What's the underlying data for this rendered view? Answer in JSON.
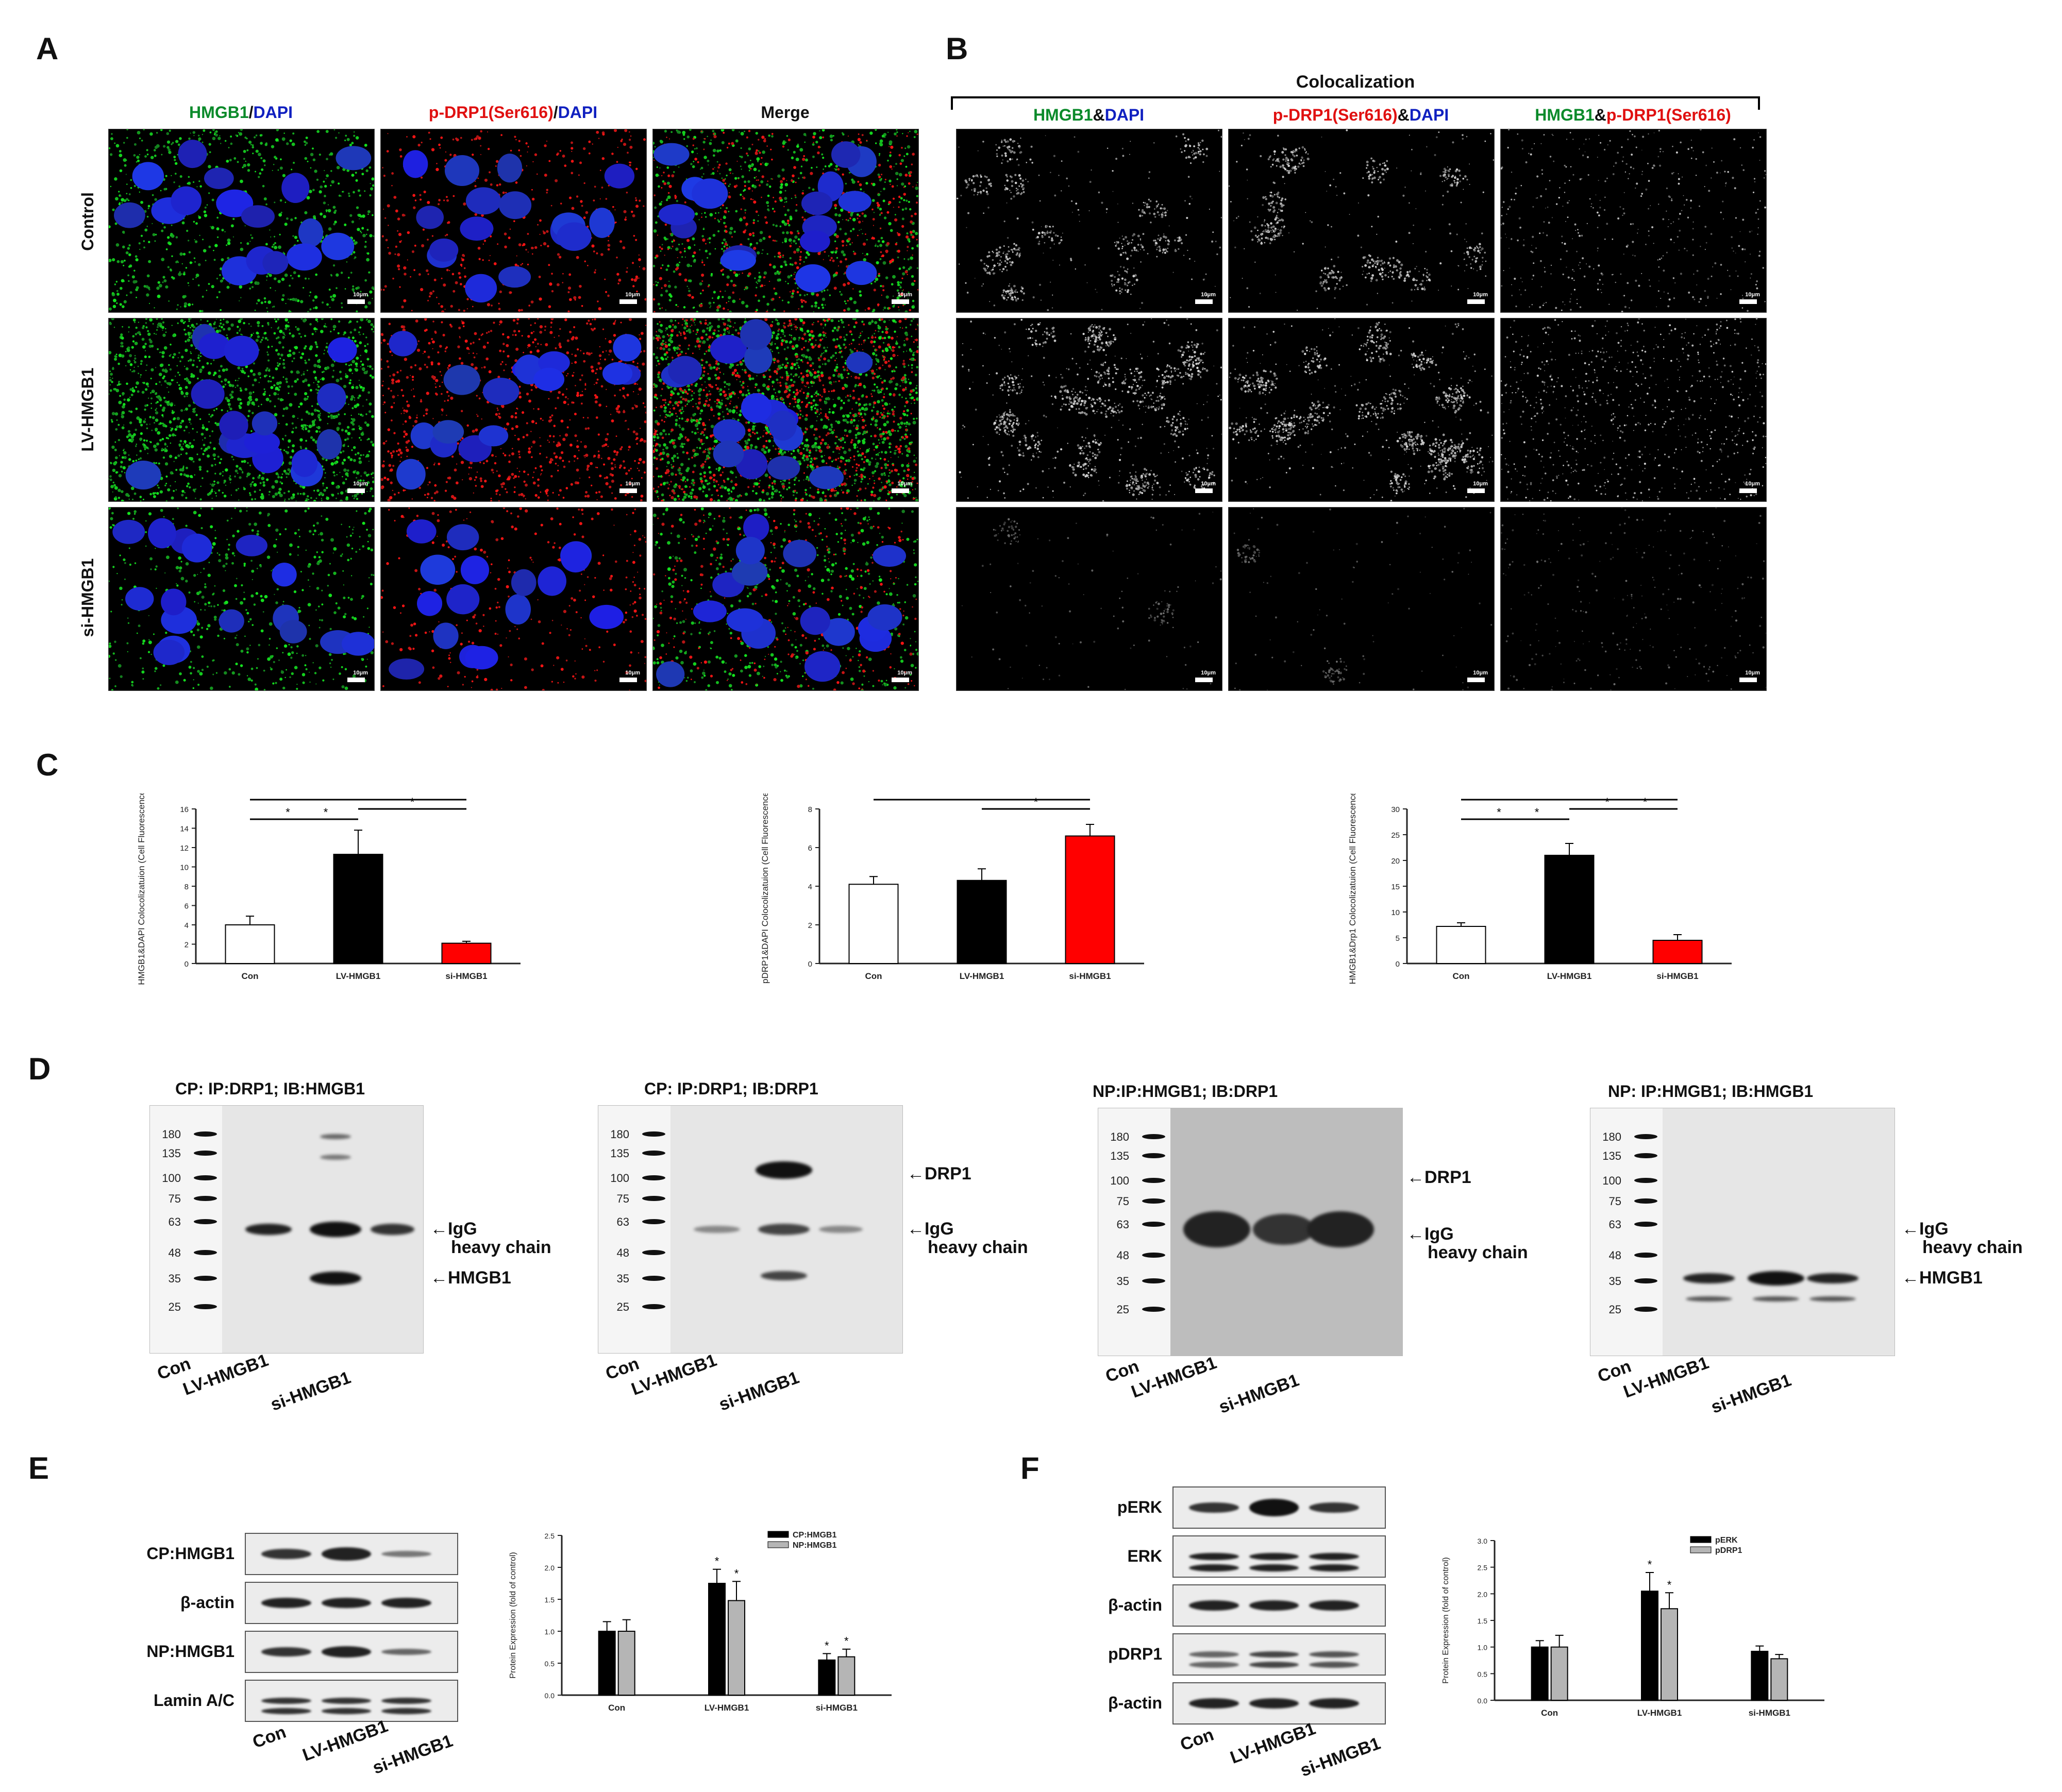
{
  "panels": {
    "a": "A",
    "b": "B",
    "c": "C",
    "d": "D",
    "e": "E",
    "f": "F"
  },
  "panel_a": {
    "col1": {
      "g": "HMGB1",
      "sep": "/",
      "b": "DAPI"
    },
    "col2": {
      "r": "p-DRP1(Ser616)",
      "sep": "/",
      "b": "DAPI"
    },
    "col3": "Merge",
    "rows": [
      "Control",
      "LV-HMGB1",
      "si-HMGB1"
    ],
    "scale": "10μm"
  },
  "panel_b": {
    "title": "Colocalization",
    "col1": {
      "g": "HMGB1",
      "sep": "&",
      "b": "DAPI"
    },
    "col2": {
      "r": "p-DRP1(Ser616)",
      "sep": "&",
      "b": "DAPI"
    },
    "col3": {
      "g": "HMGB1",
      "sep": "&",
      "r": "p-DRP1(Ser616)"
    },
    "scale": "10μm"
  },
  "colors": {
    "green": "#0a8a2a",
    "red": "#e01010",
    "blue": "#1020c0",
    "black_bar": "#000000",
    "red_bar": "#ff0000",
    "gray_bar": "#b5b5b5"
  },
  "chart_data": [
    {
      "type": "bar",
      "categories": [
        "Con",
        "LV-HMGB1",
        "si-HMGB1"
      ],
      "values": [
        4.0,
        11.3,
        2.1
      ],
      "errors": [
        0.9,
        2.5,
        0.2
      ],
      "ylabel": "HMGB1&DAPI Colocolizatuion (Cell Fluorescence)",
      "ylim": [
        0,
        16
      ],
      "yticks": [
        0,
        2,
        4,
        6,
        8,
        10,
        12,
        14,
        16
      ],
      "sig": "*"
    },
    {
      "type": "bar",
      "categories": [
        "Con",
        "LV-HMGB1",
        "si-HMGB1"
      ],
      "values": [
        4.1,
        4.3,
        6.6
      ],
      "errors": [
        0.4,
        0.6,
        0.6
      ],
      "ylabel": "pDRP1&DAPI Colocolizatuion (Cell Fluorescence)",
      "ylim": [
        0,
        8
      ],
      "yticks": [
        0,
        2,
        4,
        6,
        8
      ],
      "sig": "*"
    },
    {
      "type": "bar",
      "categories": [
        "Con",
        "LV-HMGB1",
        "si-HMGB1"
      ],
      "values": [
        7.2,
        21.0,
        4.5
      ],
      "errors": [
        0.7,
        2.3,
        1.1
      ],
      "ylabel": "HMGB1&Drp1 Colocolizatuion (Cell Fluorescence)",
      "ylim": [
        0,
        30
      ],
      "yticks": [
        0,
        5,
        10,
        15,
        20,
        25,
        30
      ],
      "sig": "*"
    },
    {
      "type": "bar",
      "categories": [
        "Con",
        "LV-HMGB1",
        "si-HMGB1"
      ],
      "series": [
        {
          "name": "CP:HMGB1",
          "values": [
            1.0,
            1.75,
            0.55
          ],
          "errors": [
            0.15,
            0.22,
            0.1
          ]
        },
        {
          "name": "NP:HMGB1",
          "values": [
            1.0,
            1.48,
            0.6
          ],
          "errors": [
            0.18,
            0.3,
            0.12
          ]
        }
      ],
      "ylabel": "Protein Expression (fold of control)",
      "ylim": [
        0,
        2.5
      ],
      "yticks": [
        "0.0",
        "0.5",
        "1.0",
        "1.5",
        "2.0",
        "2.5"
      ],
      "legend": "top-right",
      "sig": "*"
    },
    {
      "type": "bar",
      "categories": [
        "Con",
        "LV-HMGB1",
        "si-HMGB1"
      ],
      "series": [
        {
          "name": "pERK",
          "values": [
            1.0,
            2.05,
            0.92
          ],
          "errors": [
            0.12,
            0.35,
            0.1
          ]
        },
        {
          "name": "pDRP1",
          "values": [
            1.0,
            1.72,
            0.78
          ],
          "errors": [
            0.22,
            0.3,
            0.08
          ]
        }
      ],
      "ylabel": "Protein Expression (fold of control)",
      "ylim": [
        0,
        3.0
      ],
      "yticks": [
        "0.0",
        "0.5",
        "1.0",
        "1.5",
        "2.0",
        "2.5",
        "3.0"
      ],
      "legend": "top-right",
      "sig": "*"
    }
  ],
  "panel_d": {
    "blots": [
      {
        "title": "CP: IP:DRP1; IB:HMGB1",
        "markers": [
          "180",
          "135",
          "100",
          "75",
          "63",
          "48",
          "35",
          "25"
        ],
        "arrows": [
          {
            "text": "IgG",
            "text2": "heavy chain"
          },
          {
            "text": "HMGB1"
          }
        ]
      },
      {
        "title": "CP: IP:DRP1; IB:DRP1",
        "markers": [
          "180",
          "135",
          "100",
          "75",
          "63",
          "48",
          "35",
          "25"
        ],
        "arrows": [
          {
            "text": "DRP1"
          },
          {
            "text": "IgG",
            "text2": "heavy chain"
          }
        ]
      },
      {
        "title": "NP:IP:HMGB1; IB:DRP1",
        "markers": [
          "180",
          "135",
          "100",
          "75",
          "63",
          "48",
          "35",
          "25"
        ],
        "arrows": [
          {
            "text": "DRP1"
          },
          {
            "text": "IgG",
            "text2": "heavy chain"
          }
        ]
      },
      {
        "title": "NP: IP:HMGB1; IB:HMGB1",
        "markers": [
          "180",
          "135",
          "100",
          "75",
          "63",
          "48",
          "35",
          "25"
        ],
        "arrows": [
          {
            "text": "IgG",
            "text2": "heavy chain"
          },
          {
            "text": "HMGB1"
          }
        ]
      }
    ],
    "lanes": [
      "Con",
      "LV-HMGB1",
      "si-HMGB1"
    ]
  },
  "panel_e": {
    "rows": [
      "CP:HMGB1",
      "β-actin",
      "NP:HMGB1",
      "Lamin A/C"
    ],
    "lanes": [
      "Con",
      "LV-HMGB1",
      "si-HMGB1"
    ]
  },
  "panel_f": {
    "rows": [
      "pERK",
      "ERK",
      "β-actin",
      "pDRP1",
      "β-actin"
    ],
    "lanes": [
      "Con",
      "LV-HMGB1",
      "si-HMGB1"
    ]
  }
}
